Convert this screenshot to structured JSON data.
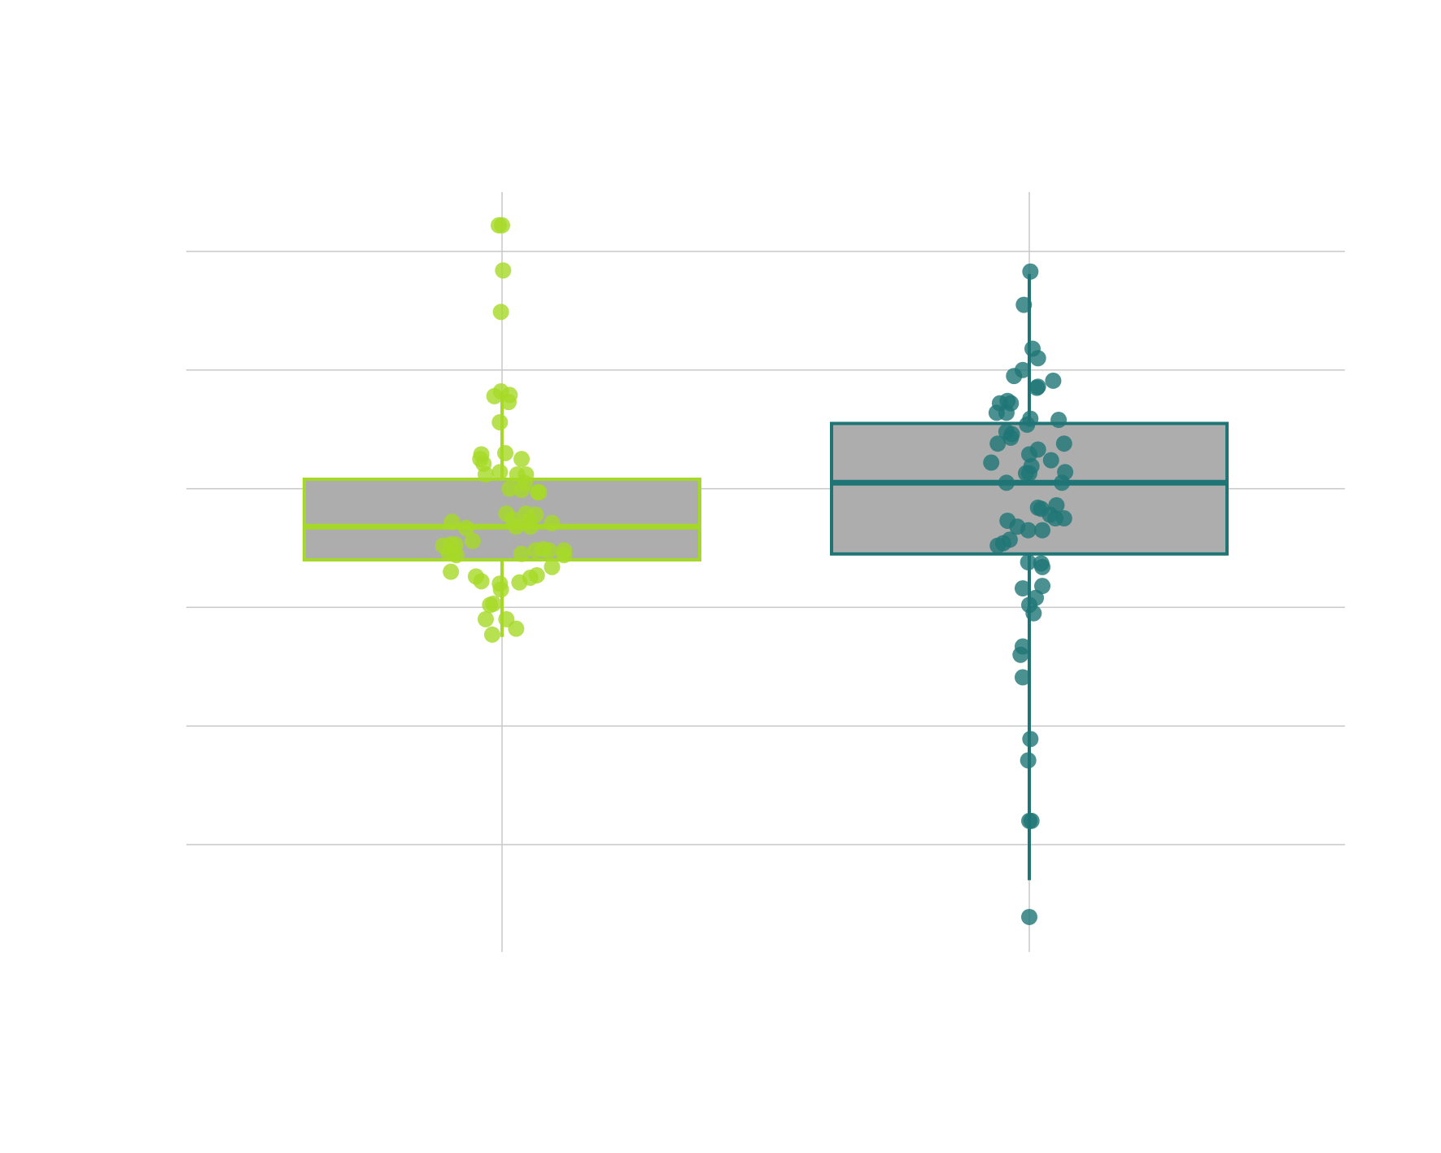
{
  "chart_data": {
    "type": "box",
    "categories": [
      "",
      ""
    ],
    "title": "",
    "xlabel": "",
    "ylabel": "",
    "ylim": [
      -0.45,
      5.95
    ],
    "y_gridlines": [
      0,
      1,
      2,
      3,
      4,
      5
    ],
    "grid": true,
    "box_fill": "#adadad",
    "series": [
      {
        "color": "#a6d927",
        "box": {
          "whisker_low": 1.75,
          "q1": 2.4,
          "median": 2.68,
          "q3": 3.08,
          "whisker_high": 3.82
        },
        "points": [
          [
            -0.03,
            5.22
          ],
          [
            0.0,
            5.22
          ],
          [
            0.01,
            4.84
          ],
          [
            -0.01,
            4.49
          ],
          [
            -0.01,
            3.82
          ],
          [
            0.07,
            3.79
          ],
          [
            -0.07,
            3.78
          ],
          [
            0.06,
            3.73
          ],
          [
            -0.02,
            3.56
          ],
          [
            -0.19,
            3.29
          ],
          [
            -0.2,
            3.25
          ],
          [
            -0.17,
            3.21
          ],
          [
            0.03,
            3.3
          ],
          [
            0.18,
            3.25
          ],
          [
            -0.15,
            3.12
          ],
          [
            -0.02,
            3.14
          ],
          [
            0.14,
            3.12
          ],
          [
            0.22,
            3.12
          ],
          [
            0.21,
            3.05
          ],
          [
            0.07,
            3.0
          ],
          [
            0.18,
            2.99
          ],
          [
            0.33,
            2.97
          ],
          [
            0.34,
            2.97
          ],
          [
            0.04,
            2.79
          ],
          [
            0.1,
            2.74
          ],
          [
            0.22,
            2.79
          ],
          [
            0.25,
            2.73
          ],
          [
            0.31,
            2.78
          ],
          [
            0.13,
            2.68
          ],
          [
            0.26,
            2.68
          ],
          [
            -0.46,
            2.72
          ],
          [
            -0.33,
            2.67
          ],
          [
            0.46,
            2.71
          ],
          [
            -0.27,
            2.56
          ],
          [
            -0.54,
            2.52
          ],
          [
            -0.47,
            2.53
          ],
          [
            -0.43,
            2.53
          ],
          [
            -0.45,
            2.47
          ],
          [
            -0.42,
            2.44
          ],
          [
            -0.49,
            2.46
          ],
          [
            0.18,
            2.45
          ],
          [
            0.31,
            2.48
          ],
          [
            0.38,
            2.49
          ],
          [
            0.43,
            2.48
          ],
          [
            0.57,
            2.48
          ],
          [
            0.57,
            2.44
          ],
          [
            -0.47,
            2.3
          ],
          [
            0.46,
            2.34
          ],
          [
            -0.19,
            2.22
          ],
          [
            -0.24,
            2.26
          ],
          [
            0.16,
            2.21
          ],
          [
            0.26,
            2.25
          ],
          [
            0.32,
            2.27
          ],
          [
            -0.02,
            2.2
          ],
          [
            -0.01,
            2.15
          ],
          [
            -0.11,
            2.02
          ],
          [
            -0.08,
            2.03
          ],
          [
            -0.15,
            1.9
          ],
          [
            0.04,
            1.9
          ],
          [
            0.13,
            1.82
          ],
          [
            -0.09,
            1.77
          ]
        ]
      },
      {
        "color": "#1f7575",
        "box": {
          "whisker_low": -0.3,
          "q1": 2.45,
          "median": 3.05,
          "q3": 3.55,
          "whisker_high": 4.81
        },
        "points": [
          [
            0.01,
            4.83
          ],
          [
            -0.05,
            4.55
          ],
          [
            0.03,
            4.18
          ],
          [
            0.08,
            4.1
          ],
          [
            -0.06,
            4.0
          ],
          [
            -0.14,
            3.95
          ],
          [
            0.22,
            3.91
          ],
          [
            0.07,
            3.85
          ],
          [
            0.08,
            3.86
          ],
          [
            -0.2,
            3.74
          ],
          [
            -0.27,
            3.72
          ],
          [
            -0.3,
            3.64
          ],
          [
            -0.21,
            3.64
          ],
          [
            -0.17,
            3.72
          ],
          [
            0.01,
            3.59
          ],
          [
            -0.02,
            3.54
          ],
          [
            0.27,
            3.58
          ],
          [
            -0.21,
            3.48
          ],
          [
            -0.16,
            3.46
          ],
          [
            -0.17,
            3.43
          ],
          [
            -0.29,
            3.38
          ],
          [
            0.08,
            3.33
          ],
          [
            0.2,
            3.24
          ],
          [
            0.32,
            3.38
          ],
          [
            -0.35,
            3.22
          ],
          [
            0.0,
            3.29
          ],
          [
            0.02,
            3.19
          ],
          [
            -0.03,
            3.13
          ],
          [
            0.0,
            3.13
          ],
          [
            0.33,
            3.14
          ],
          [
            0.3,
            3.05
          ],
          [
            -0.21,
            3.05
          ],
          [
            0.08,
            2.84
          ],
          [
            0.11,
            2.83
          ],
          [
            0.25,
            2.86
          ],
          [
            0.19,
            2.78
          ],
          [
            0.24,
            2.75
          ],
          [
            0.32,
            2.75
          ],
          [
            -0.2,
            2.73
          ],
          [
            -0.11,
            2.68
          ],
          [
            -0.01,
            2.65
          ],
          [
            0.12,
            2.65
          ],
          [
            -0.18,
            2.57
          ],
          [
            -0.24,
            2.54
          ],
          [
            -0.29,
            2.52
          ],
          [
            -0.01,
            2.38
          ],
          [
            0.11,
            2.37
          ],
          [
            0.12,
            2.34
          ],
          [
            -0.06,
            2.16
          ],
          [
            0.12,
            2.18
          ],
          [
            0.06,
            2.08
          ],
          [
            0.0,
            2.02
          ],
          [
            0.04,
            1.95
          ],
          [
            -0.06,
            1.67
          ],
          [
            -0.08,
            1.6
          ],
          [
            -0.06,
            1.41
          ],
          [
            0.01,
            0.89
          ],
          [
            -0.01,
            0.71
          ],
          [
            0.0,
            0.2
          ],
          [
            0.02,
            0.2
          ],
          [
            0.0,
            -0.61
          ]
        ]
      }
    ]
  }
}
